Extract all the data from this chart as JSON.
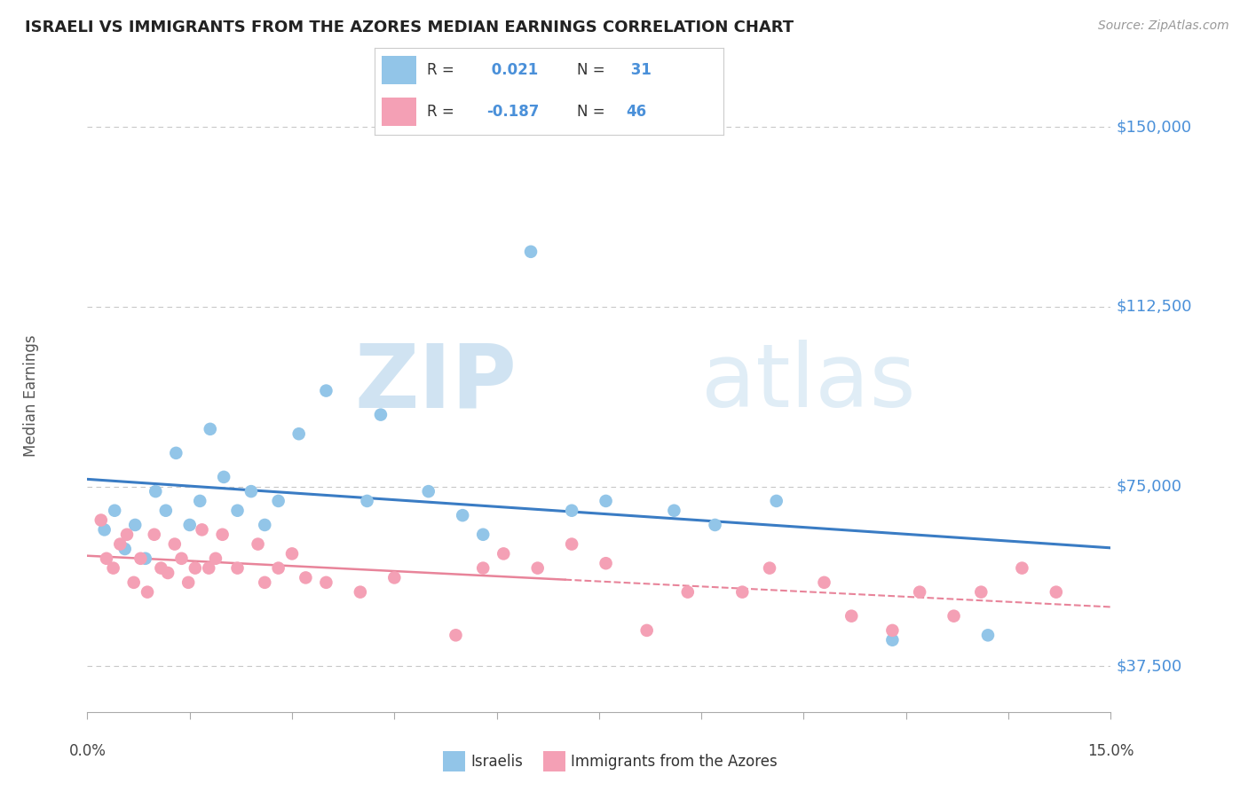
{
  "title": "ISRAELI VS IMMIGRANTS FROM THE AZORES MEDIAN EARNINGS CORRELATION CHART",
  "source": "Source: ZipAtlas.com",
  "ylabel": "Median Earnings",
  "yticks": [
    37500,
    75000,
    112500,
    150000
  ],
  "ytick_labels": [
    "$37,500",
    "$75,000",
    "$112,500",
    "$150,000"
  ],
  "xlim": [
    0.0,
    15.0
  ],
  "ylim": [
    28000,
    160000
  ],
  "color_blue": "#92c5e8",
  "color_pink": "#f4a0b5",
  "line_blue": "#3a7cc4",
  "line_pink": "#e8849a",
  "bg_color": "#ffffff",
  "grid_color": "#c8c8c8",
  "title_color": "#222222",
  "ytick_color": "#4a90d9",
  "israelis_x": [
    0.25,
    0.4,
    0.55,
    0.7,
    0.85,
    1.0,
    1.15,
    1.3,
    1.5,
    1.65,
    1.8,
    2.0,
    2.2,
    2.4,
    2.6,
    2.8,
    3.1,
    3.5,
    4.1,
    4.3,
    5.0,
    5.5,
    5.8,
    6.5,
    7.1,
    7.6,
    8.6,
    9.2,
    10.1,
    11.8,
    13.2
  ],
  "israelis_y": [
    66000,
    70000,
    62000,
    67000,
    60000,
    74000,
    70000,
    82000,
    67000,
    72000,
    87000,
    77000,
    70000,
    74000,
    67000,
    72000,
    86000,
    95000,
    72000,
    90000,
    74000,
    69000,
    65000,
    124000,
    70000,
    72000,
    70000,
    67000,
    72000,
    43000,
    44000
  ],
  "azores_x": [
    0.2,
    0.28,
    0.38,
    0.48,
    0.58,
    0.68,
    0.78,
    0.88,
    0.98,
    1.08,
    1.18,
    1.28,
    1.38,
    1.48,
    1.58,
    1.68,
    1.78,
    1.88,
    1.98,
    2.2,
    2.5,
    2.6,
    2.8,
    3.0,
    3.2,
    3.5,
    4.0,
    4.5,
    5.4,
    5.8,
    6.1,
    6.6,
    7.1,
    7.6,
    8.2,
    8.8,
    9.6,
    10.0,
    10.8,
    11.2,
    11.8,
    12.2,
    12.7,
    13.1,
    13.7,
    14.2
  ],
  "azores_y": [
    68000,
    60000,
    58000,
    63000,
    65000,
    55000,
    60000,
    53000,
    65000,
    58000,
    57000,
    63000,
    60000,
    55000,
    58000,
    66000,
    58000,
    60000,
    65000,
    58000,
    63000,
    55000,
    58000,
    61000,
    56000,
    55000,
    53000,
    56000,
    44000,
    58000,
    61000,
    58000,
    63000,
    59000,
    45000,
    53000,
    53000,
    58000,
    55000,
    48000,
    45000,
    53000,
    48000,
    53000,
    58000,
    53000
  ],
  "legend_line1_r": "0.021",
  "legend_line1_n": "31",
  "legend_line2_r": "-0.187",
  "legend_line2_n": "46",
  "xtick_positions": [
    0.0,
    1.5,
    3.0,
    4.5,
    6.0,
    7.5,
    9.0,
    10.5,
    12.0,
    13.5,
    15.0
  ],
  "xtick_labels": [
    "0.0%",
    "",
    "",
    "",
    "",
    "",
    "",
    "",
    "",
    "",
    "15.0%"
  ]
}
